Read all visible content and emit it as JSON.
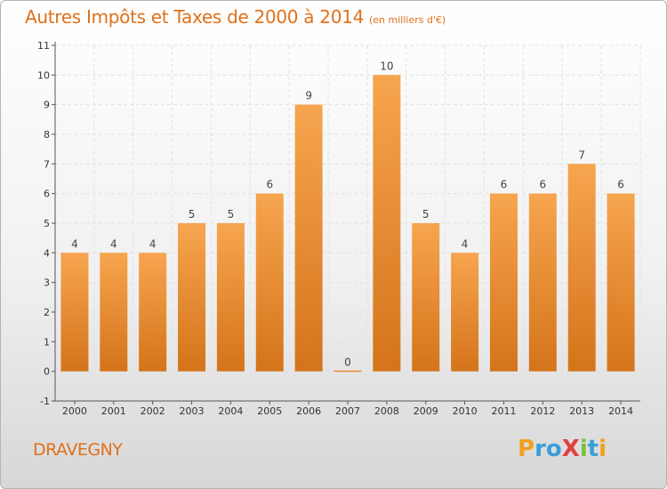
{
  "title": "Autres Impôts et Taxes de 2000 à 2014",
  "unit_note": "(en milliers d'€)",
  "commune": "DRAVEGNY",
  "logo": {
    "text": "ProXiti",
    "letters": [
      {
        "ch": "P",
        "color": "#f0a020"
      },
      {
        "ch": "r",
        "color": "#3a9fd8"
      },
      {
        "ch": "o",
        "color": "#3a9fd8"
      },
      {
        "ch": "X",
        "color": "#e04040"
      },
      {
        "ch": "i",
        "color": "#7cbf3c"
      },
      {
        "ch": "t",
        "color": "#3a9fd8"
      },
      {
        "ch": "i",
        "color": "#f0a020"
      }
    ]
  },
  "colors": {
    "accent": "#e0701a",
    "bar_light": "#f7a54f",
    "bar_dark": "#d4741a"
  },
  "chart_data": {
    "type": "bar",
    "categories": [
      "2000",
      "2001",
      "2002",
      "2003",
      "2004",
      "2005",
      "2006",
      "2007",
      "2008",
      "2009",
      "2010",
      "2011",
      "2012",
      "2013",
      "2014"
    ],
    "values": [
      4,
      4,
      4,
      5,
      5,
      6,
      9,
      0,
      10,
      5,
      4,
      6,
      6,
      7,
      6
    ],
    "value_labels": [
      "4",
      "4",
      "4",
      "5",
      "5",
      "6",
      "9",
      "0",
      "10",
      "5",
      "4",
      "6",
      "6",
      "7",
      "6"
    ],
    "yticks": [
      "-1",
      "0",
      "1",
      "2",
      "3",
      "4",
      "5",
      "6",
      "7",
      "8",
      "9",
      "10",
      "11"
    ],
    "ylim": [
      -1,
      11
    ],
    "grid": true,
    "legend": "none"
  }
}
